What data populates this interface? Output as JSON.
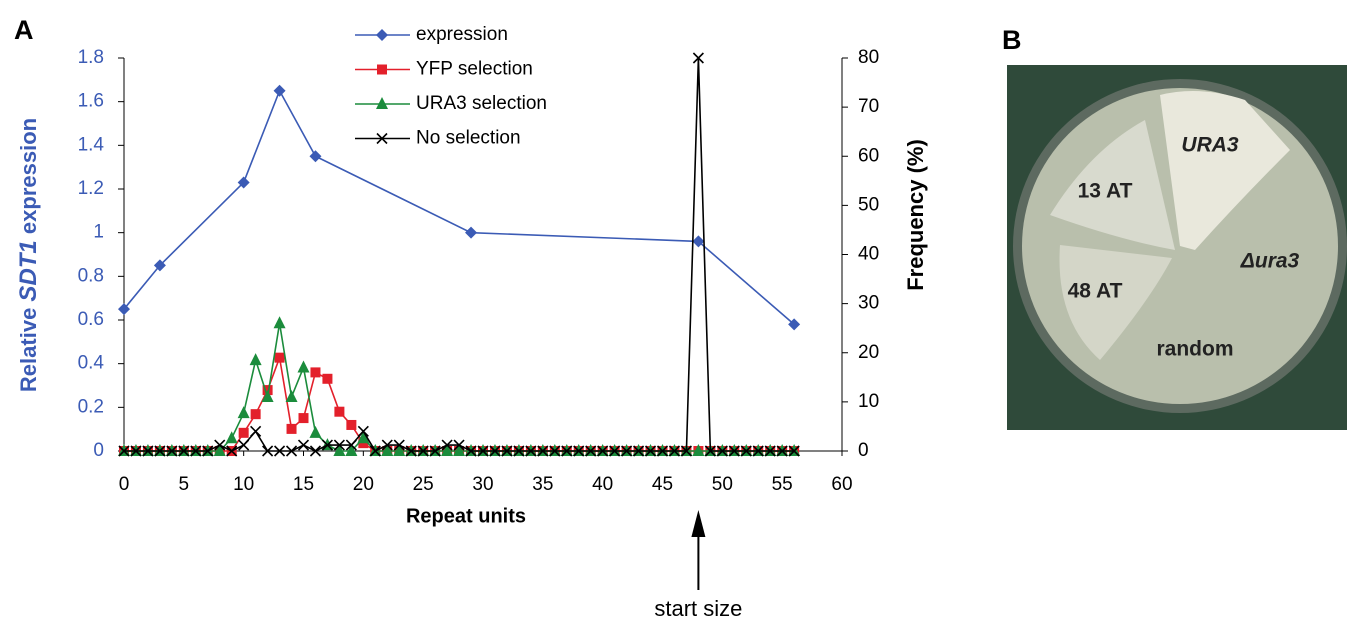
{
  "panels": {
    "a": "A",
    "b": "B"
  },
  "chart_data": {
    "type": "line",
    "ylabel": {
      "prefix": "Relative",
      "italic": "SDT1",
      "suffix": "expression"
    },
    "y2label": "Frequency (%)",
    "xlabel": "Repeat units",
    "xlim": [
      0,
      60
    ],
    "xticks": [
      0,
      5,
      10,
      15,
      20,
      25,
      30,
      35,
      40,
      45,
      50,
      55,
      60
    ],
    "ylim": [
      0,
      1.8
    ],
    "yticks": [
      0,
      0.2,
      0.4,
      0.6,
      0.8,
      1,
      1.2,
      1.4,
      1.6,
      1.8
    ],
    "y2lim": [
      0,
      80
    ],
    "y2ticks": [
      0,
      10,
      20,
      30,
      40,
      50,
      60,
      70,
      80
    ],
    "x": [
      0,
      1,
      2,
      3,
      4,
      5,
      6,
      7,
      8,
      9,
      10,
      11,
      12,
      13,
      14,
      15,
      16,
      17,
      18,
      19,
      20,
      21,
      22,
      23,
      24,
      25,
      26,
      27,
      28,
      29,
      30,
      31,
      32,
      33,
      34,
      35,
      36,
      37,
      38,
      39,
      40,
      41,
      42,
      43,
      44,
      45,
      46,
      47,
      48,
      49,
      50,
      51,
      52,
      53,
      54,
      55,
      56
    ],
    "legend": "top",
    "series": [
      {
        "name": "expression",
        "color": "#3b5bb5",
        "marker": "diamond",
        "axis": "y",
        "x": [
          0,
          3,
          10,
          13,
          16,
          29,
          48,
          56
        ],
        "values": [
          0.65,
          0.85,
          1.23,
          1.65,
          1.35,
          1.0,
          0.96,
          0.58
        ]
      },
      {
        "name": "YFP selection",
        "color": "#e3202b",
        "marker": "square",
        "axis": "y2",
        "values": [
          0,
          0,
          0,
          0,
          0,
          0,
          0,
          0,
          0,
          0,
          3.7,
          7.5,
          12.4,
          19,
          4.5,
          6.7,
          16,
          14.7,
          8,
          5.3,
          1.6,
          0,
          0,
          0,
          0,
          0,
          0,
          0,
          0,
          0,
          0,
          0,
          0,
          0,
          0,
          0,
          0,
          0,
          0,
          0,
          0,
          0,
          0,
          0,
          0,
          0,
          0,
          0,
          0,
          0,
          0,
          0,
          0,
          0,
          0,
          0,
          0
        ]
      },
      {
        "name": "URA3 selection",
        "color": "#1b8c3c",
        "marker": "triangle",
        "axis": "y2",
        "values": [
          0,
          0,
          0,
          0,
          0,
          0,
          0,
          0,
          0,
          2.6,
          7.7,
          18.5,
          11,
          26,
          11,
          17,
          3.7,
          1.2,
          0,
          0,
          2.6,
          0,
          0,
          0,
          0,
          0,
          0,
          0,
          0,
          0,
          0,
          0,
          0,
          0,
          0,
          0,
          0,
          0,
          0,
          0,
          0,
          0,
          0,
          0,
          0,
          0,
          0,
          0,
          0,
          0,
          0,
          0,
          0,
          0,
          0,
          0,
          0
        ]
      },
      {
        "name": "No selection",
        "color": "#000000",
        "marker": "cross",
        "axis": "y2",
        "values": [
          0,
          0,
          0,
          0,
          0,
          0,
          0,
          0,
          1.2,
          0,
          1.2,
          4,
          0,
          0,
          0,
          1.2,
          0,
          1.2,
          1.2,
          1.2,
          4,
          0,
          1.2,
          1.2,
          0,
          0,
          0,
          1.2,
          1.2,
          0,
          0,
          0,
          0,
          0,
          0,
          0,
          0,
          0,
          0,
          0,
          0,
          0,
          0,
          0,
          0,
          0,
          0,
          0,
          80,
          0,
          0,
          0,
          0,
          0,
          0,
          0,
          0
        ]
      }
    ],
    "annotation": {
      "text": "start size",
      "x": 48
    }
  },
  "plate": {
    "labels": [
      "URA3",
      "13 AT",
      "Δura3",
      "48 AT",
      "random"
    ]
  }
}
